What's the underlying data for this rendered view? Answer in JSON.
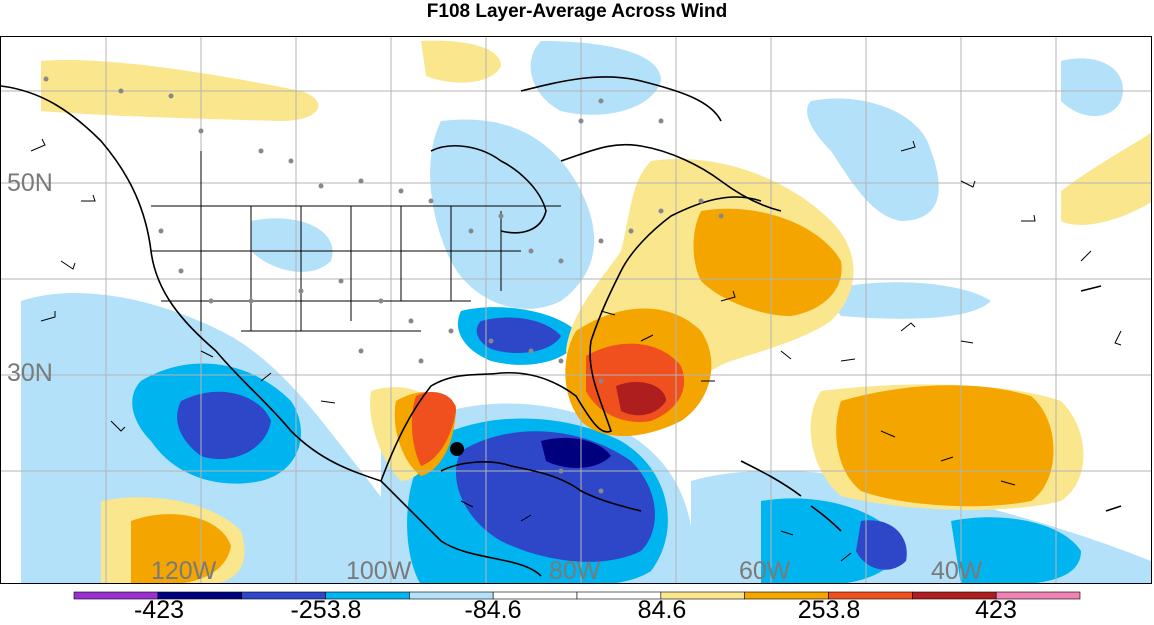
{
  "title": "F108 Layer-Average Across Wind",
  "map": {
    "lat_labels": [
      "50N",
      "30N"
    ],
    "lon_labels": [
      "120W",
      "100W",
      "80W",
      "60W",
      "40W"
    ],
    "gridline_color": "#b4b4b4",
    "label_color": "#7a7a7a",
    "marker_color": "#000000"
  },
  "colorbar": {
    "colors": [
      "#9b30d0",
      "#00007f",
      "#2d47c8",
      "#00b4f0",
      "#b4e1fa",
      "#ffffff",
      "#ffffff",
      "#fae68c",
      "#f5a500",
      "#f0501e",
      "#af1e1e",
      "#f082b4"
    ],
    "tick_labels": [
      "-423",
      "-253.8",
      "-84.6",
      "84.6",
      "253.8",
      "423"
    ]
  }
}
